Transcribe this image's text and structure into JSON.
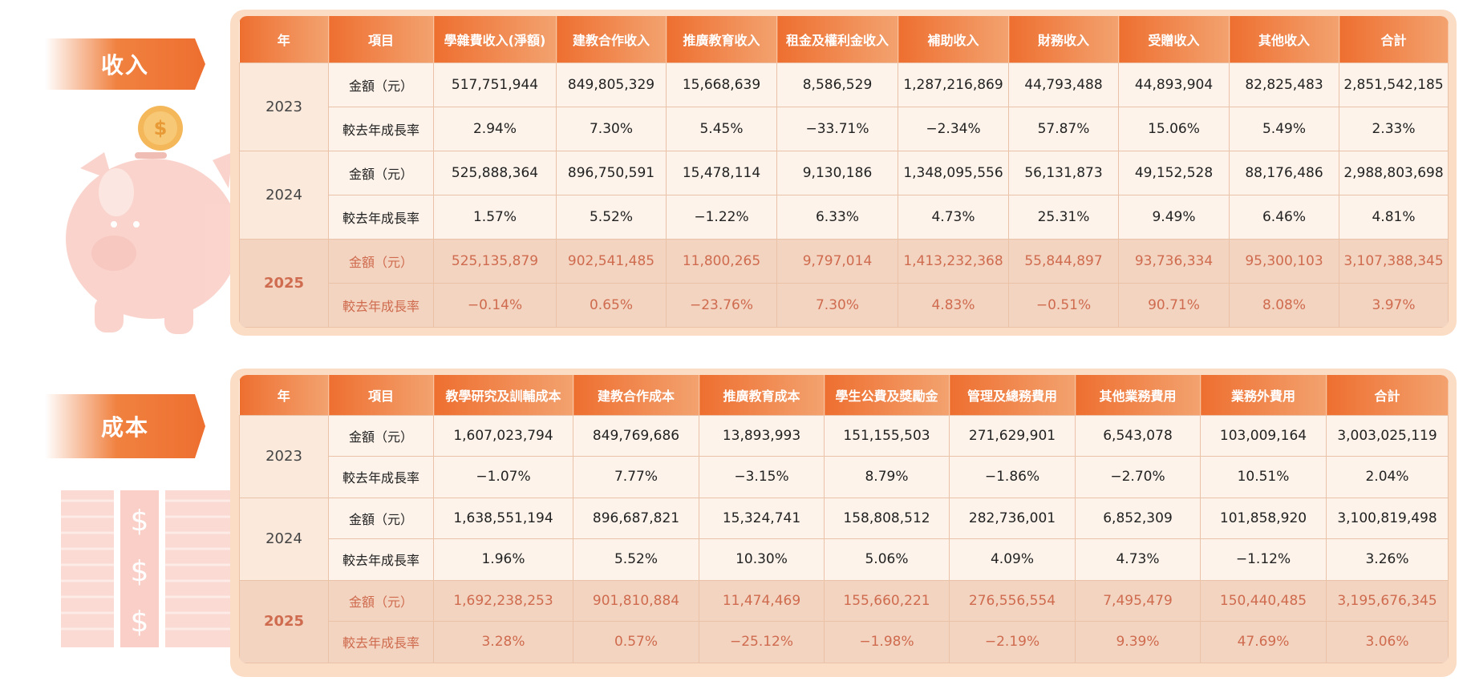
{
  "income": {
    "label": "收入",
    "headers": [
      "年",
      "項目",
      "學雜費收入(淨額)",
      "建教合作收入",
      "推廣教育收入",
      "租金及權利金收入",
      "補助收入",
      "財務收入",
      "受贈收入",
      "其他收入",
      "合計"
    ],
    "years": [
      {
        "year": "2023",
        "rows": [
          {
            "item": "金額（元）",
            "cells": [
              "517,751,944",
              "849,805,329",
              "15,668,639",
              "8,586,529",
              "1,287,216,869",
              "44,793,488",
              "44,893,904",
              "82,825,483",
              "2,851,542,185"
            ]
          },
          {
            "item": "較去年成長率",
            "cells": [
              "2.94%",
              "7.30%",
              "5.45%",
              "−33.71%",
              "−2.34%",
              "57.87%",
              "15.06%",
              "5.49%",
              "2.33%"
            ]
          }
        ]
      },
      {
        "year": "2024",
        "rows": [
          {
            "item": "金額（元）",
            "cells": [
              "525,888,364",
              "896,750,591",
              "15,478,114",
              "9,130,186",
              "1,348,095,556",
              "56,131,873",
              "49,152,528",
              "88,176,486",
              "2,988,803,698"
            ]
          },
          {
            "item": "較去年成長率",
            "cells": [
              "1.57%",
              "5.52%",
              "−1.22%",
              "6.33%",
              "4.73%",
              "25.31%",
              "9.49%",
              "6.46%",
              "4.81%"
            ]
          }
        ]
      },
      {
        "year": "2025",
        "rows": [
          {
            "item": "金額（元）",
            "cells": [
              "525,135,879",
              "902,541,485",
              "11,800,265",
              "9,797,014",
              "1,413,232,368",
              "55,844,897",
              "93,736,334",
              "95,300,103",
              "3,107,388,345"
            ]
          },
          {
            "item": "較去年成長率",
            "cells": [
              "−0.14%",
              "0.65%",
              "−23.76%",
              "7.30%",
              "4.83%",
              "−0.51%",
              "90.71%",
              "8.08%",
              "3.97%"
            ]
          }
        ]
      }
    ]
  },
  "cost": {
    "label": "成本",
    "headers": [
      "年",
      "項目",
      "教學研究及訓輔成本",
      "建教合作成本",
      "推廣教育成本",
      "學生公費及獎勵金",
      "管理及總務費用",
      "其他業務費用",
      "業務外費用",
      "合計"
    ],
    "years": [
      {
        "year": "2023",
        "rows": [
          {
            "item": "金額（元）",
            "cells": [
              "1,607,023,794",
              "849,769,686",
              "13,893,993",
              "151,155,503",
              "271,629,901",
              "6,543,078",
              "103,009,164",
              "3,003,025,119"
            ]
          },
          {
            "item": "較去年成長率",
            "cells": [
              "−1.07%",
              "7.77%",
              "−3.15%",
              "8.79%",
              "−1.86%",
              "−2.70%",
              "10.51%",
              "2.04%"
            ]
          }
        ]
      },
      {
        "year": "2024",
        "rows": [
          {
            "item": "金額（元）",
            "cells": [
              "1,638,551,194",
              "896,687,821",
              "15,324,741",
              "158,808,512",
              "282,736,001",
              "6,852,309",
              "101,858,920",
              "3,100,819,498"
            ]
          },
          {
            "item": "較去年成長率",
            "cells": [
              "1.96%",
              "5.52%",
              "10.30%",
              "5.06%",
              "4.09%",
              "4.73%",
              "−1.12%",
              "3.26%"
            ]
          }
        ]
      },
      {
        "year": "2025",
        "rows": [
          {
            "item": "金額（元）",
            "cells": [
              "1,692,238,253",
              "901,810,884",
              "11,474,469",
              "155,660,221",
              "276,556,554",
              "7,495,479",
              "150,440,485",
              "3,195,676,345"
            ]
          },
          {
            "item": "較去年成長率",
            "cells": [
              "3.28%",
              "0.57%",
              "−25.12%",
              "−1.98%",
              "−2.19%",
              "9.39%",
              "47.69%",
              "3.06%"
            ]
          }
        ]
      }
    ]
  }
}
